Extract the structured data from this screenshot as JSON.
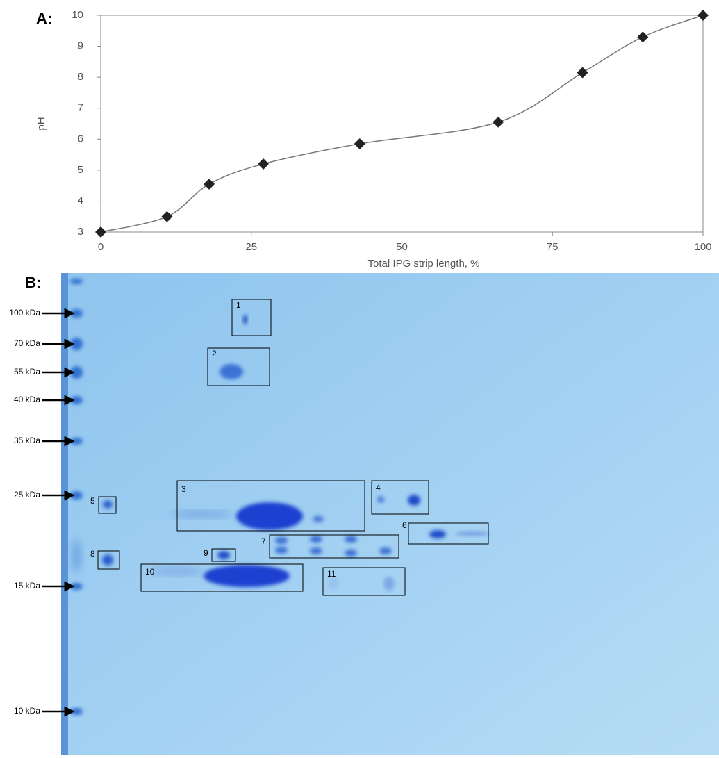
{
  "panel_a_label": "A:",
  "chart_data": {
    "type": "line",
    "x_label": "Total IPG strip length, %",
    "y_label": "pH",
    "x": [
      0,
      11,
      18,
      27,
      43,
      66,
      80,
      90,
      100
    ],
    "y": [
      3,
      3.5,
      4.55,
      5.2,
      5.85,
      6.55,
      8.15,
      9.3,
      10
    ],
    "color": "#222222",
    "line_color": "#777777",
    "xlim": [
      0,
      100
    ],
    "ylim": [
      3,
      10
    ],
    "xticks": [
      0,
      25,
      50,
      75,
      100
    ],
    "yticks": [
      3,
      4,
      5,
      6,
      7,
      8,
      9,
      10
    ]
  },
  "gel": {
    "panel_label": "B:",
    "markers": [
      "100 kDa",
      "70 kDa",
      "55 kDa",
      "40 kDa",
      "35 kDa",
      "25 kDa",
      "15 kDa",
      "10 kDa"
    ],
    "spots": [
      "1",
      "2",
      "3",
      "4",
      "5",
      "6",
      "7",
      "8",
      "9",
      "10",
      "11"
    ]
  }
}
